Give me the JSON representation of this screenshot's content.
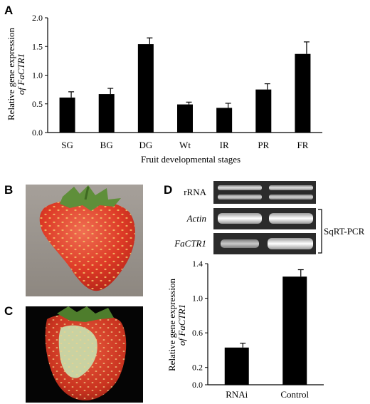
{
  "panels": {
    "a": "A",
    "b": "B",
    "c": "C",
    "d": "D"
  },
  "chart_data": [
    {
      "type": "bar",
      "panel": "A",
      "categories": [
        "SG",
        "BG",
        "DG",
        "Wt",
        "IR",
        "PR",
        "FR"
      ],
      "values": [
        0.61,
        0.67,
        1.54,
        0.49,
        0.43,
        0.75,
        1.37
      ],
      "errors": [
        0.1,
        0.1,
        0.11,
        0.04,
        0.08,
        0.1,
        0.21
      ],
      "xlabel": "Fruit developmental stages",
      "ylabel": "Relative gene expression",
      "ylabel_gene": "of FaCTR1",
      "ylim": [
        0,
        2.0
      ],
      "yticks": [
        "0.0",
        "0.5",
        "1.0",
        "1.5",
        "2.0"
      ],
      "grid": false,
      "bar_color": "#000000"
    },
    {
      "type": "bar",
      "panel": "D",
      "categories": [
        "RNAi",
        "Control"
      ],
      "values": [
        0.43,
        1.25
      ],
      "errors": [
        0.05,
        0.08
      ],
      "ylabel": "Relative gene expression",
      "ylabel_gene": "of FaCTR1",
      "ylim": [
        0,
        1.4
      ],
      "yticks": [
        "0.0",
        "0.2",
        "0.6",
        "1.0",
        "1.4"
      ],
      "grid": false,
      "bar_color": "#000000"
    }
  ],
  "gel": {
    "rows": [
      {
        "label": "rRNA",
        "italic": false
      },
      {
        "label": "Actin",
        "italic": true
      },
      {
        "label": "FaCTR1",
        "italic": true
      }
    ],
    "bracket_label": "SqRT-PCR"
  }
}
